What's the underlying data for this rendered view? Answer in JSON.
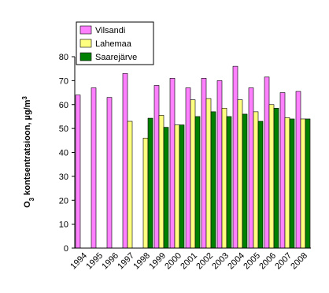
{
  "chart_data": {
    "type": "bar",
    "y_label": [
      "O",
      "3",
      " kontsentratsioon, µg/m",
      "3"
    ],
    "categories": [
      "1994",
      "1995",
      "1996",
      "1997",
      "1998",
      "1999",
      "2000",
      "2001",
      "2002",
      "2003",
      "2004",
      "2005",
      "2006",
      "2007",
      "2008"
    ],
    "series": [
      {
        "name": "Vilsandi",
        "color": "#ff80ff",
        "values": [
          64,
          67,
          63,
          73,
          null,
          68,
          71,
          67,
          71,
          70,
          76,
          67,
          71.5,
          65,
          65.5
        ]
      },
      {
        "name": "Lahemaa",
        "color": "#ffff80",
        "values": [
          null,
          null,
          null,
          53,
          46,
          55.5,
          51.5,
          62,
          62.5,
          58.5,
          62,
          57,
          60,
          54.5,
          54
        ]
      },
      {
        "name": "Saarejärve",
        "color": "#008000",
        "values": [
          null,
          null,
          null,
          null,
          54.3,
          50.5,
          51.5,
          55,
          57,
          55,
          56,
          53,
          58.5,
          54,
          54
        ]
      }
    ],
    "ylim": [
      0,
      80
    ],
    "yticks": [
      0,
      10,
      20,
      30,
      40,
      50,
      60,
      70,
      80
    ],
    "grid": false,
    "legend": "top-left"
  }
}
